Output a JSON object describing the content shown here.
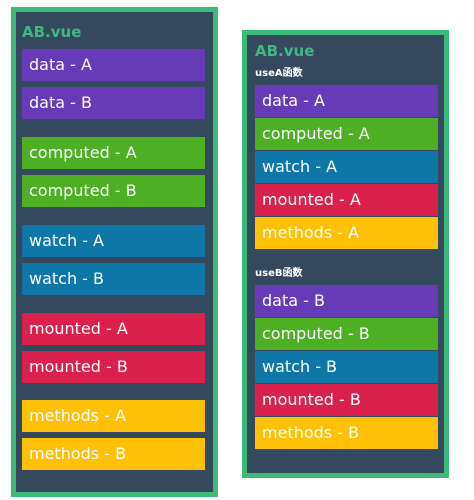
{
  "left_panel": {
    "title": "AB.vue",
    "blocks": [
      {
        "label": "data - A",
        "color": "#673ab7"
      },
      {
        "label": "data - B",
        "color": "#673ab7"
      },
      {
        "label": "computed - A",
        "color": "#4caf24"
      },
      {
        "label": "computed - B",
        "color": "#4caf24"
      },
      {
        "label": "watch - A",
        "color": "#0f77a8"
      },
      {
        "label": "watch - B",
        "color": "#0f77a8"
      },
      {
        "label": "mounted - A",
        "color": "#d9214b"
      },
      {
        "label": "mounted - B",
        "color": "#d9214b"
      },
      {
        "label": "methods - A",
        "color": "#ffc107"
      },
      {
        "label": "methods - B",
        "color": "#ffc107"
      }
    ]
  },
  "right_panel": {
    "title": "AB.vue",
    "group_a": {
      "label": "useA函数",
      "blocks": [
        {
          "label": "data - A"
        },
        {
          "label": "computed - A"
        },
        {
          "label": "watch - A"
        },
        {
          "label": "mounted - A"
        },
        {
          "label": "methods - A"
        }
      ]
    },
    "group_b": {
      "label": "useB函数",
      "blocks": [
        {
          "label": "data - B"
        },
        {
          "label": "computed - B"
        },
        {
          "label": "watch - B"
        },
        {
          "label": "mounted - B"
        },
        {
          "label": "methods - B"
        }
      ]
    }
  },
  "colors": {
    "panel_background": "#34495e",
    "panel_border": "#3dba78",
    "title": "#41b883"
  }
}
